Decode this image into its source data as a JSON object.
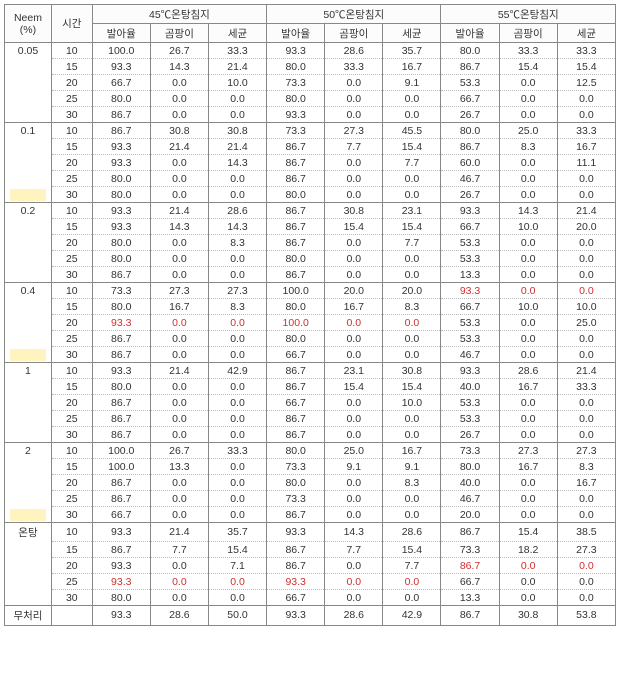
{
  "header": {
    "neem": "Neem (%)",
    "time": "시간",
    "group45": "45℃온탕침지",
    "group50": "50℃온탕침지",
    "group55": "55℃온탕침지",
    "col_germ": "발아율",
    "col_fungi": "곰팡이",
    "col_bact": "세균"
  },
  "groups": [
    {
      "label": "0.05",
      "rows": [
        {
          "time": "10",
          "v": [
            "100.0",
            "26.7",
            "33.3",
            "93.3",
            "28.6",
            "35.7",
            "80.0",
            "33.3",
            "33.3"
          ]
        },
        {
          "time": "15",
          "v": [
            "93.3",
            "14.3",
            "21.4",
            "80.0",
            "33.3",
            "16.7",
            "86.7",
            "15.4",
            "15.4"
          ]
        },
        {
          "time": "20",
          "v": [
            "66.7",
            "0.0",
            "10.0",
            "73.3",
            "0.0",
            "9.1",
            "53.3",
            "0.0",
            "12.5"
          ]
        },
        {
          "time": "25",
          "v": [
            "80.0",
            "0.0",
            "0.0",
            "80.0",
            "0.0",
            "0.0",
            "66.7",
            "0.0",
            "0.0"
          ]
        },
        {
          "time": "30",
          "v": [
            "86.7",
            "0.0",
            "0.0",
            "93.3",
            "0.0",
            "0.0",
            "26.7",
            "0.0",
            "0.0"
          ]
        }
      ]
    },
    {
      "label": "0.1",
      "rows": [
        {
          "time": "10",
          "v": [
            "86.7",
            "30.8",
            "30.8",
            "73.3",
            "27.3",
            "45.5",
            "80.0",
            "25.0",
            "33.3"
          ]
        },
        {
          "time": "15",
          "v": [
            "93.3",
            "21.4",
            "21.4",
            "86.7",
            "7.7",
            "15.4",
            "86.7",
            "8.3",
            "16.7"
          ]
        },
        {
          "time": "20",
          "v": [
            "93.3",
            "0.0",
            "14.3",
            "86.7",
            "0.0",
            "7.7",
            "60.0",
            "0.0",
            "11.1"
          ]
        },
        {
          "time": "25",
          "v": [
            "80.0",
            "0.0",
            "0.0",
            "86.7",
            "0.0",
            "0.0",
            "46.7",
            "0.0",
            "0.0"
          ]
        },
        {
          "time": "30",
          "hl_neem": true,
          "v": [
            "80.0",
            "0.0",
            "0.0",
            "80.0",
            "0.0",
            "0.0",
            "26.7",
            "0.0",
            "0.0"
          ]
        }
      ]
    },
    {
      "label": "0.2",
      "rows": [
        {
          "time": "10",
          "v": [
            "93.3",
            "21.4",
            "28.6",
            "86.7",
            "30.8",
            "23.1",
            "93.3",
            "14.3",
            "21.4"
          ]
        },
        {
          "time": "15",
          "v": [
            "93.3",
            "14.3",
            "14.3",
            "86.7",
            "15.4",
            "15.4",
            "66.7",
            "10.0",
            "20.0"
          ]
        },
        {
          "time": "20",
          "v": [
            "80.0",
            "0.0",
            "8.3",
            "86.7",
            "0.0",
            "7.7",
            "53.3",
            "0.0",
            "0.0"
          ]
        },
        {
          "time": "25",
          "v": [
            "80.0",
            "0.0",
            "0.0",
            "80.0",
            "0.0",
            "0.0",
            "53.3",
            "0.0",
            "0.0"
          ]
        },
        {
          "time": "30",
          "v": [
            "86.7",
            "0.0",
            "0.0",
            "86.7",
            "0.0",
            "0.0",
            "13.3",
            "0.0",
            "0.0"
          ]
        }
      ]
    },
    {
      "label": "0.4",
      "rows": [
        {
          "time": "10",
          "v": [
            "73.3",
            "27.3",
            "27.3",
            "100.0",
            "20.0",
            "20.0",
            "93.3",
            "0.0",
            "0.0"
          ],
          "red": [
            6,
            7,
            8
          ]
        },
        {
          "time": "15",
          "v": [
            "80.0",
            "16.7",
            "8.3",
            "80.0",
            "16.7",
            "8.3",
            "66.7",
            "10.0",
            "10.0"
          ]
        },
        {
          "time": "20",
          "v": [
            "93.3",
            "0.0",
            "0.0",
            "100.0",
            "0.0",
            "0.0",
            "53.3",
            "0.0",
            "25.0"
          ],
          "red": [
            0,
            1,
            2,
            3,
            4,
            5
          ]
        },
        {
          "time": "25",
          "v": [
            "86.7",
            "0.0",
            "0.0",
            "80.0",
            "0.0",
            "0.0",
            "53.3",
            "0.0",
            "0.0"
          ]
        },
        {
          "time": "30",
          "hl_neem": true,
          "v": [
            "86.7",
            "0.0",
            "0.0",
            "66.7",
            "0.0",
            "0.0",
            "46.7",
            "0.0",
            "0.0"
          ]
        }
      ]
    },
    {
      "label": "1",
      "rows": [
        {
          "time": "10",
          "v": [
            "93.3",
            "21.4",
            "42.9",
            "86.7",
            "23.1",
            "30.8",
            "93.3",
            "28.6",
            "21.4"
          ]
        },
        {
          "time": "15",
          "v": [
            "80.0",
            "0.0",
            "0.0",
            "86.7",
            "15.4",
            "15.4",
            "40.0",
            "16.7",
            "33.3"
          ]
        },
        {
          "time": "20",
          "v": [
            "86.7",
            "0.0",
            "0.0",
            "66.7",
            "0.0",
            "10.0",
            "53.3",
            "0.0",
            "0.0"
          ]
        },
        {
          "time": "25",
          "v": [
            "86.7",
            "0.0",
            "0.0",
            "86.7",
            "0.0",
            "0.0",
            "53.3",
            "0.0",
            "0.0"
          ]
        },
        {
          "time": "30",
          "v": [
            "86.7",
            "0.0",
            "0.0",
            "86.7",
            "0.0",
            "0.0",
            "26.7",
            "0.0",
            "0.0"
          ]
        }
      ]
    },
    {
      "label": "2",
      "rows": [
        {
          "time": "10",
          "v": [
            "100.0",
            "26.7",
            "33.3",
            "80.0",
            "25.0",
            "16.7",
            "73.3",
            "27.3",
            "27.3"
          ]
        },
        {
          "time": "15",
          "v": [
            "100.0",
            "13.3",
            "0.0",
            "73.3",
            "9.1",
            "9.1",
            "80.0",
            "16.7",
            "8.3"
          ]
        },
        {
          "time": "20",
          "v": [
            "86.7",
            "0.0",
            "0.0",
            "80.0",
            "0.0",
            "8.3",
            "40.0",
            "0.0",
            "16.7"
          ]
        },
        {
          "time": "25",
          "v": [
            "86.7",
            "0.0",
            "0.0",
            "73.3",
            "0.0",
            "0.0",
            "46.7",
            "0.0",
            "0.0"
          ]
        },
        {
          "time": "30",
          "hl_neem": true,
          "v": [
            "66.7",
            "0.0",
            "0.0",
            "86.7",
            "0.0",
            "0.0",
            "20.0",
            "0.0",
            "0.0"
          ]
        }
      ]
    },
    {
      "label": "온탕",
      "rows": [
        {
          "time": "10",
          "v": [
            "93.3",
            "21.4",
            "35.7",
            "93.3",
            "14.3",
            "28.6",
            "86.7",
            "15.4",
            "38.5"
          ]
        },
        {
          "time": "15",
          "v": [
            "86.7",
            "7.7",
            "15.4",
            "86.7",
            "7.7",
            "15.4",
            "73.3",
            "18.2",
            "27.3"
          ]
        },
        {
          "time": "20",
          "v": [
            "93.3",
            "0.0",
            "7.1",
            "86.7",
            "0.0",
            "7.7",
            "86.7",
            "0.0",
            "0.0"
          ],
          "red": [
            6,
            7,
            8
          ]
        },
        {
          "time": "25",
          "v": [
            "93.3",
            "0.0",
            "0.0",
            "93.3",
            "0.0",
            "0.0",
            "66.7",
            "0.0",
            "0.0"
          ],
          "red": [
            0,
            1,
            2,
            3,
            4,
            5
          ]
        },
        {
          "time": "30",
          "v": [
            "80.0",
            "0.0",
            "0.0",
            "66.7",
            "0.0",
            "0.0",
            "13.3",
            "0.0",
            "0.0"
          ]
        }
      ]
    },
    {
      "label": "무처리",
      "rows": [
        {
          "time": "",
          "v": [
            "93.3",
            "28.6",
            "50.0",
            "93.3",
            "28.6",
            "42.9",
            "86.7",
            "30.8",
            "53.8"
          ]
        }
      ]
    }
  ]
}
